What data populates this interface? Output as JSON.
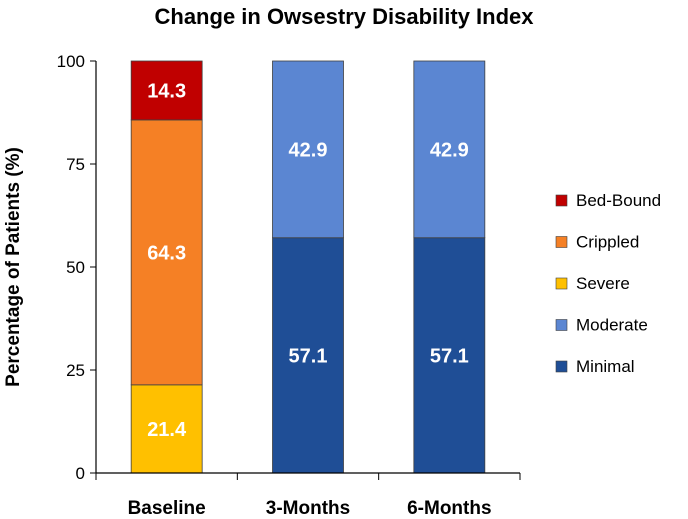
{
  "chart_data": {
    "type": "bar",
    "stacked": true,
    "title": "Change in Owsestry Disability Index",
    "xlabel": "",
    "ylabel": "Percentage of Patients (%)",
    "ylim": [
      0,
      100
    ],
    "yticks": [
      0,
      25,
      50,
      75,
      100
    ],
    "categories": [
      "Baseline",
      "3-Months",
      "6-Months"
    ],
    "series": [
      {
        "name": "Minimal",
        "color": "#1F4E96",
        "values": [
          0,
          57.1,
          57.1
        ]
      },
      {
        "name": "Moderate",
        "color": "#5B86D2",
        "values": [
          0,
          42.9,
          42.9
        ]
      },
      {
        "name": "Severe",
        "color": "#FFC000",
        "values": [
          21.4,
          0,
          0
        ]
      },
      {
        "name": "Crippled",
        "color": "#F58025",
        "values": [
          64.3,
          0,
          0
        ]
      },
      {
        "name": "Bed-Bound",
        "color": "#C00000",
        "values": [
          14.3,
          0,
          0
        ]
      }
    ],
    "legend_order": [
      "Bed-Bound",
      "Crippled",
      "Severe",
      "Moderate",
      "Minimal"
    ],
    "legend_position": "right",
    "grid": false
  }
}
